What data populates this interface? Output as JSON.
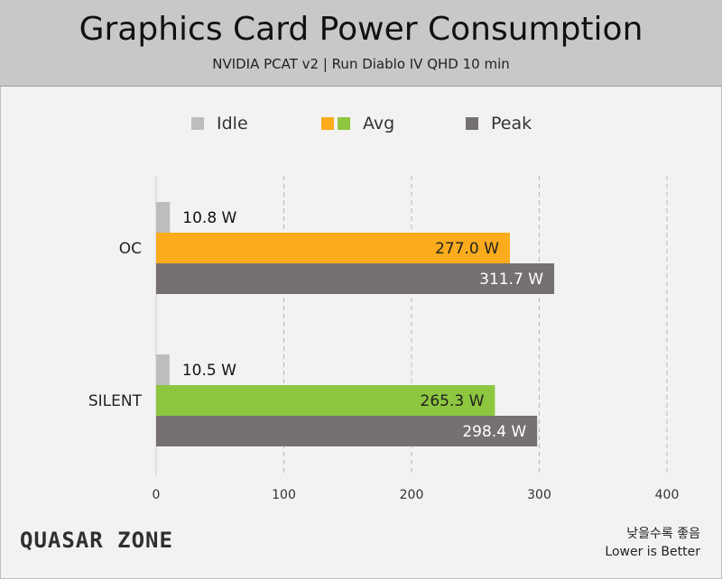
{
  "header": {
    "title": "Graphics Card Power Consumption",
    "subtitle": "NVIDIA PCAT v2  |  Run Diablo IV QHD 10 min"
  },
  "legend": [
    {
      "label": "Idle",
      "colors": [
        "#bdbdbd"
      ]
    },
    {
      "label": "Avg",
      "colors": [
        "#fbab1c",
        "#8dc63f"
      ]
    },
    {
      "label": "Peak",
      "colors": [
        "#767070"
      ]
    }
  ],
  "chart_data": {
    "type": "bar",
    "orientation": "horizontal",
    "categories": [
      "OC",
      "SILENT"
    ],
    "series": [
      {
        "name": "Idle",
        "values": [
          10.8,
          10.5
        ],
        "labels": [
          "10.8 W",
          "10.5 W"
        ]
      },
      {
        "name": "Avg",
        "values": [
          277.0,
          265.3
        ],
        "labels": [
          "277.0 W",
          "265.3 W"
        ]
      },
      {
        "name": "Peak",
        "values": [
          311.7,
          298.4
        ],
        "labels": [
          "311.7 W",
          "298.4 W"
        ]
      }
    ],
    "xlim": [
      0,
      400
    ],
    "xticks": [
      0,
      100,
      200,
      300,
      400
    ],
    "xtick_labels": [
      "0",
      "100",
      "200",
      "300",
      "400"
    ],
    "grid": "vertical-dashed",
    "legend_position": "top",
    "colors": {
      "idle": "#bdbdbd",
      "avg_oc": "#fbab1c",
      "avg_silent": "#8dc63f",
      "peak": "#767070"
    }
  },
  "footer": {
    "brand": "QUASAR ZONE",
    "note_ko": "낮을수록 좋음",
    "note_en": "Lower is Better"
  }
}
